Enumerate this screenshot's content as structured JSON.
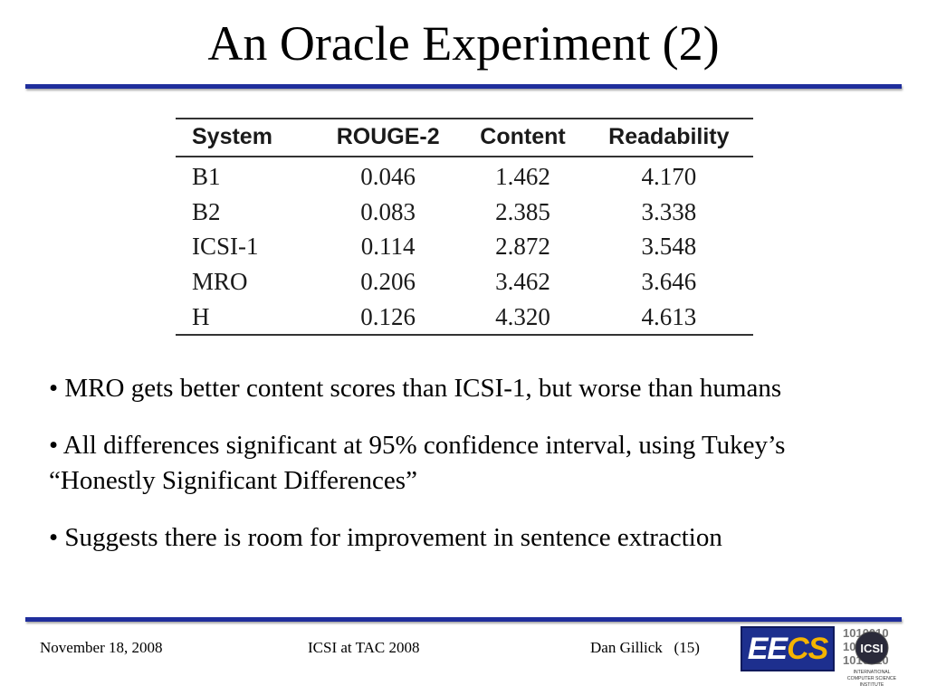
{
  "slide": {
    "title": "An Oracle Experiment (2)"
  },
  "table": {
    "headers": [
      "System",
      "ROUGE-2",
      "Content",
      "Readability"
    ],
    "rows": [
      [
        "B1",
        "0.046",
        "1.462",
        "4.170"
      ],
      [
        "B2",
        "0.083",
        "2.385",
        "3.338"
      ],
      [
        "ICSI-1",
        "0.114",
        "2.872",
        "3.548"
      ],
      [
        "MRO",
        "0.206",
        "3.462",
        "3.646"
      ],
      [
        "H",
        "0.126",
        "4.320",
        "4.613"
      ]
    ]
  },
  "bullets": [
    "• MRO gets better content scores than ICSI-1, but worse than humans",
    "• All differences significant at 95% confidence interval, using Tukey’s “Honestly Significant Differences”",
    "• Suggests there is room for improvement in sentence extraction"
  ],
  "footer": {
    "date": "November 18, 2008",
    "center": "ICSI at TAC 2008",
    "author": "Dan Gillick",
    "page": "(15)"
  },
  "logos": {
    "eecs_ee": "EE",
    "eecs_cs": "CS",
    "icsi_name": "ICSI",
    "icsi_binary": [
      "1010010",
      "1010010",
      "1010010"
    ],
    "icsi_tagline": [
      "INTERNATIONAL",
      "COMPUTER SCIENCE",
      "INSTITUTE"
    ]
  },
  "colors": {
    "rule": "#1f2e9c",
    "eecs_bg": "#1d2f8e",
    "eecs_cs": "#f5b400"
  }
}
